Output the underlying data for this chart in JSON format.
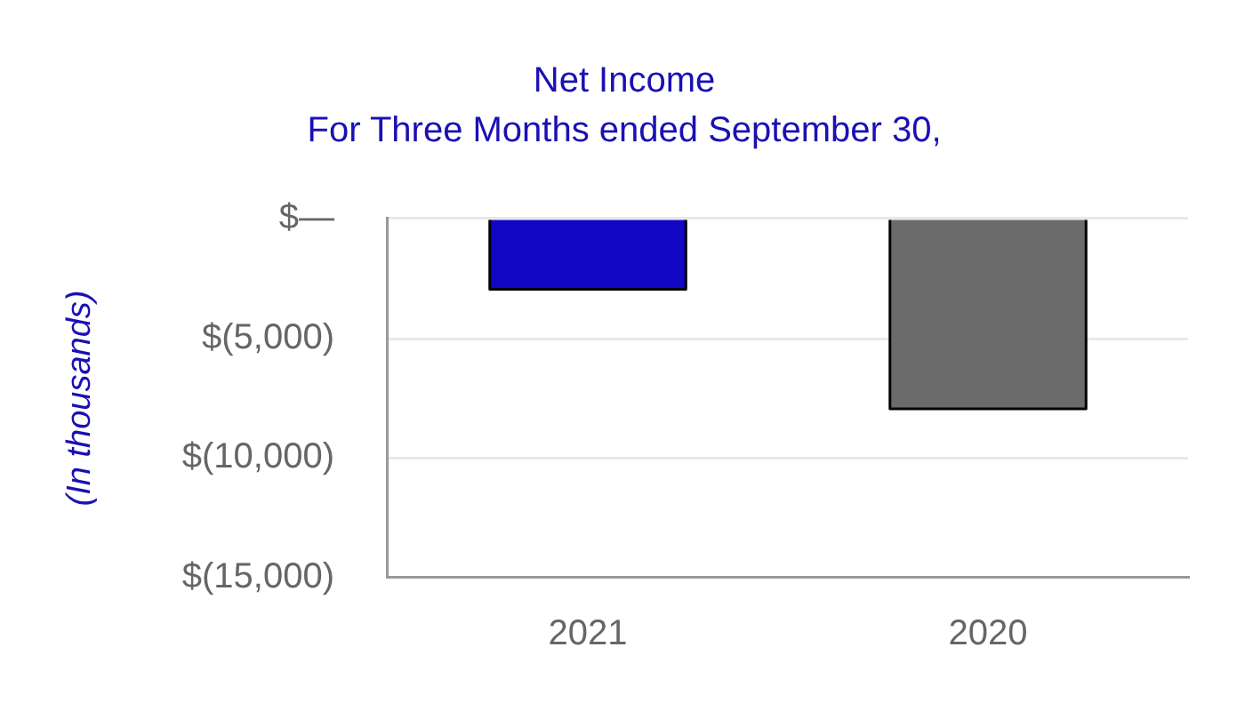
{
  "chart_data": {
    "type": "bar",
    "title": "Net Income",
    "subtitle": "For Three Months ended September 30,",
    "ylabel": "(In thousands)",
    "categories": [
      "2021",
      "2020"
    ],
    "values": [
      -2950,
      -7950
    ],
    "colors": [
      "#1107c4",
      "#6b6b6b"
    ],
    "ylim": [
      -15000,
      0
    ],
    "yticks": [
      {
        "value": 0,
        "label": "$—"
      },
      {
        "value": -5000,
        "label": "$(5,000)"
      },
      {
        "value": -10000,
        "label": "$(10,000)"
      },
      {
        "value": -15000,
        "label": "$(15,000)"
      }
    ],
    "grid": "y"
  }
}
